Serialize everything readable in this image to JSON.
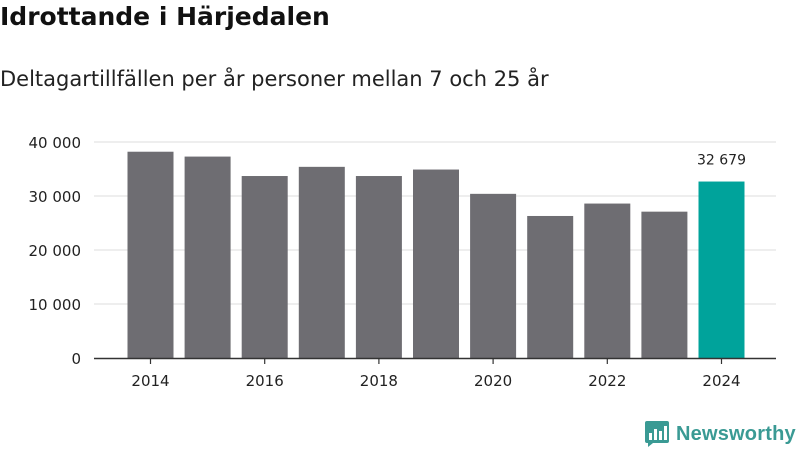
{
  "title": "Idrottande i Härjedalen",
  "subtitle": "Deltagartillfällen per år personer mellan 7 och 25 år",
  "brand": "Newsworthy",
  "colors": {
    "bar": "#6e6d72",
    "highlight": "#00a39b",
    "grid": "#dcdcdc",
    "axis": "#333333",
    "brand": "#3a9a94"
  },
  "chart_data": {
    "type": "bar",
    "categories": [
      2014,
      2015,
      2016,
      2017,
      2018,
      2019,
      2020,
      2021,
      2022,
      2023,
      2024
    ],
    "values": [
      38200,
      37300,
      33700,
      35400,
      33700,
      34900,
      30400,
      26300,
      28600,
      27100,
      32679
    ],
    "highlight_category": 2024,
    "data_labels": [
      {
        "category": 2024,
        "text": "32 679"
      }
    ],
    "x_tick_labels": [
      "2014",
      "2016",
      "2018",
      "2020",
      "2022",
      "2024"
    ],
    "y_ticks": [
      0,
      10000,
      20000,
      30000,
      40000
    ],
    "y_tick_labels": [
      "0",
      "10 000",
      "20 000",
      "30 000",
      "40 000"
    ],
    "ylim": [
      0,
      40000
    ],
    "grid": true,
    "xlabel": "",
    "ylabel": ""
  }
}
